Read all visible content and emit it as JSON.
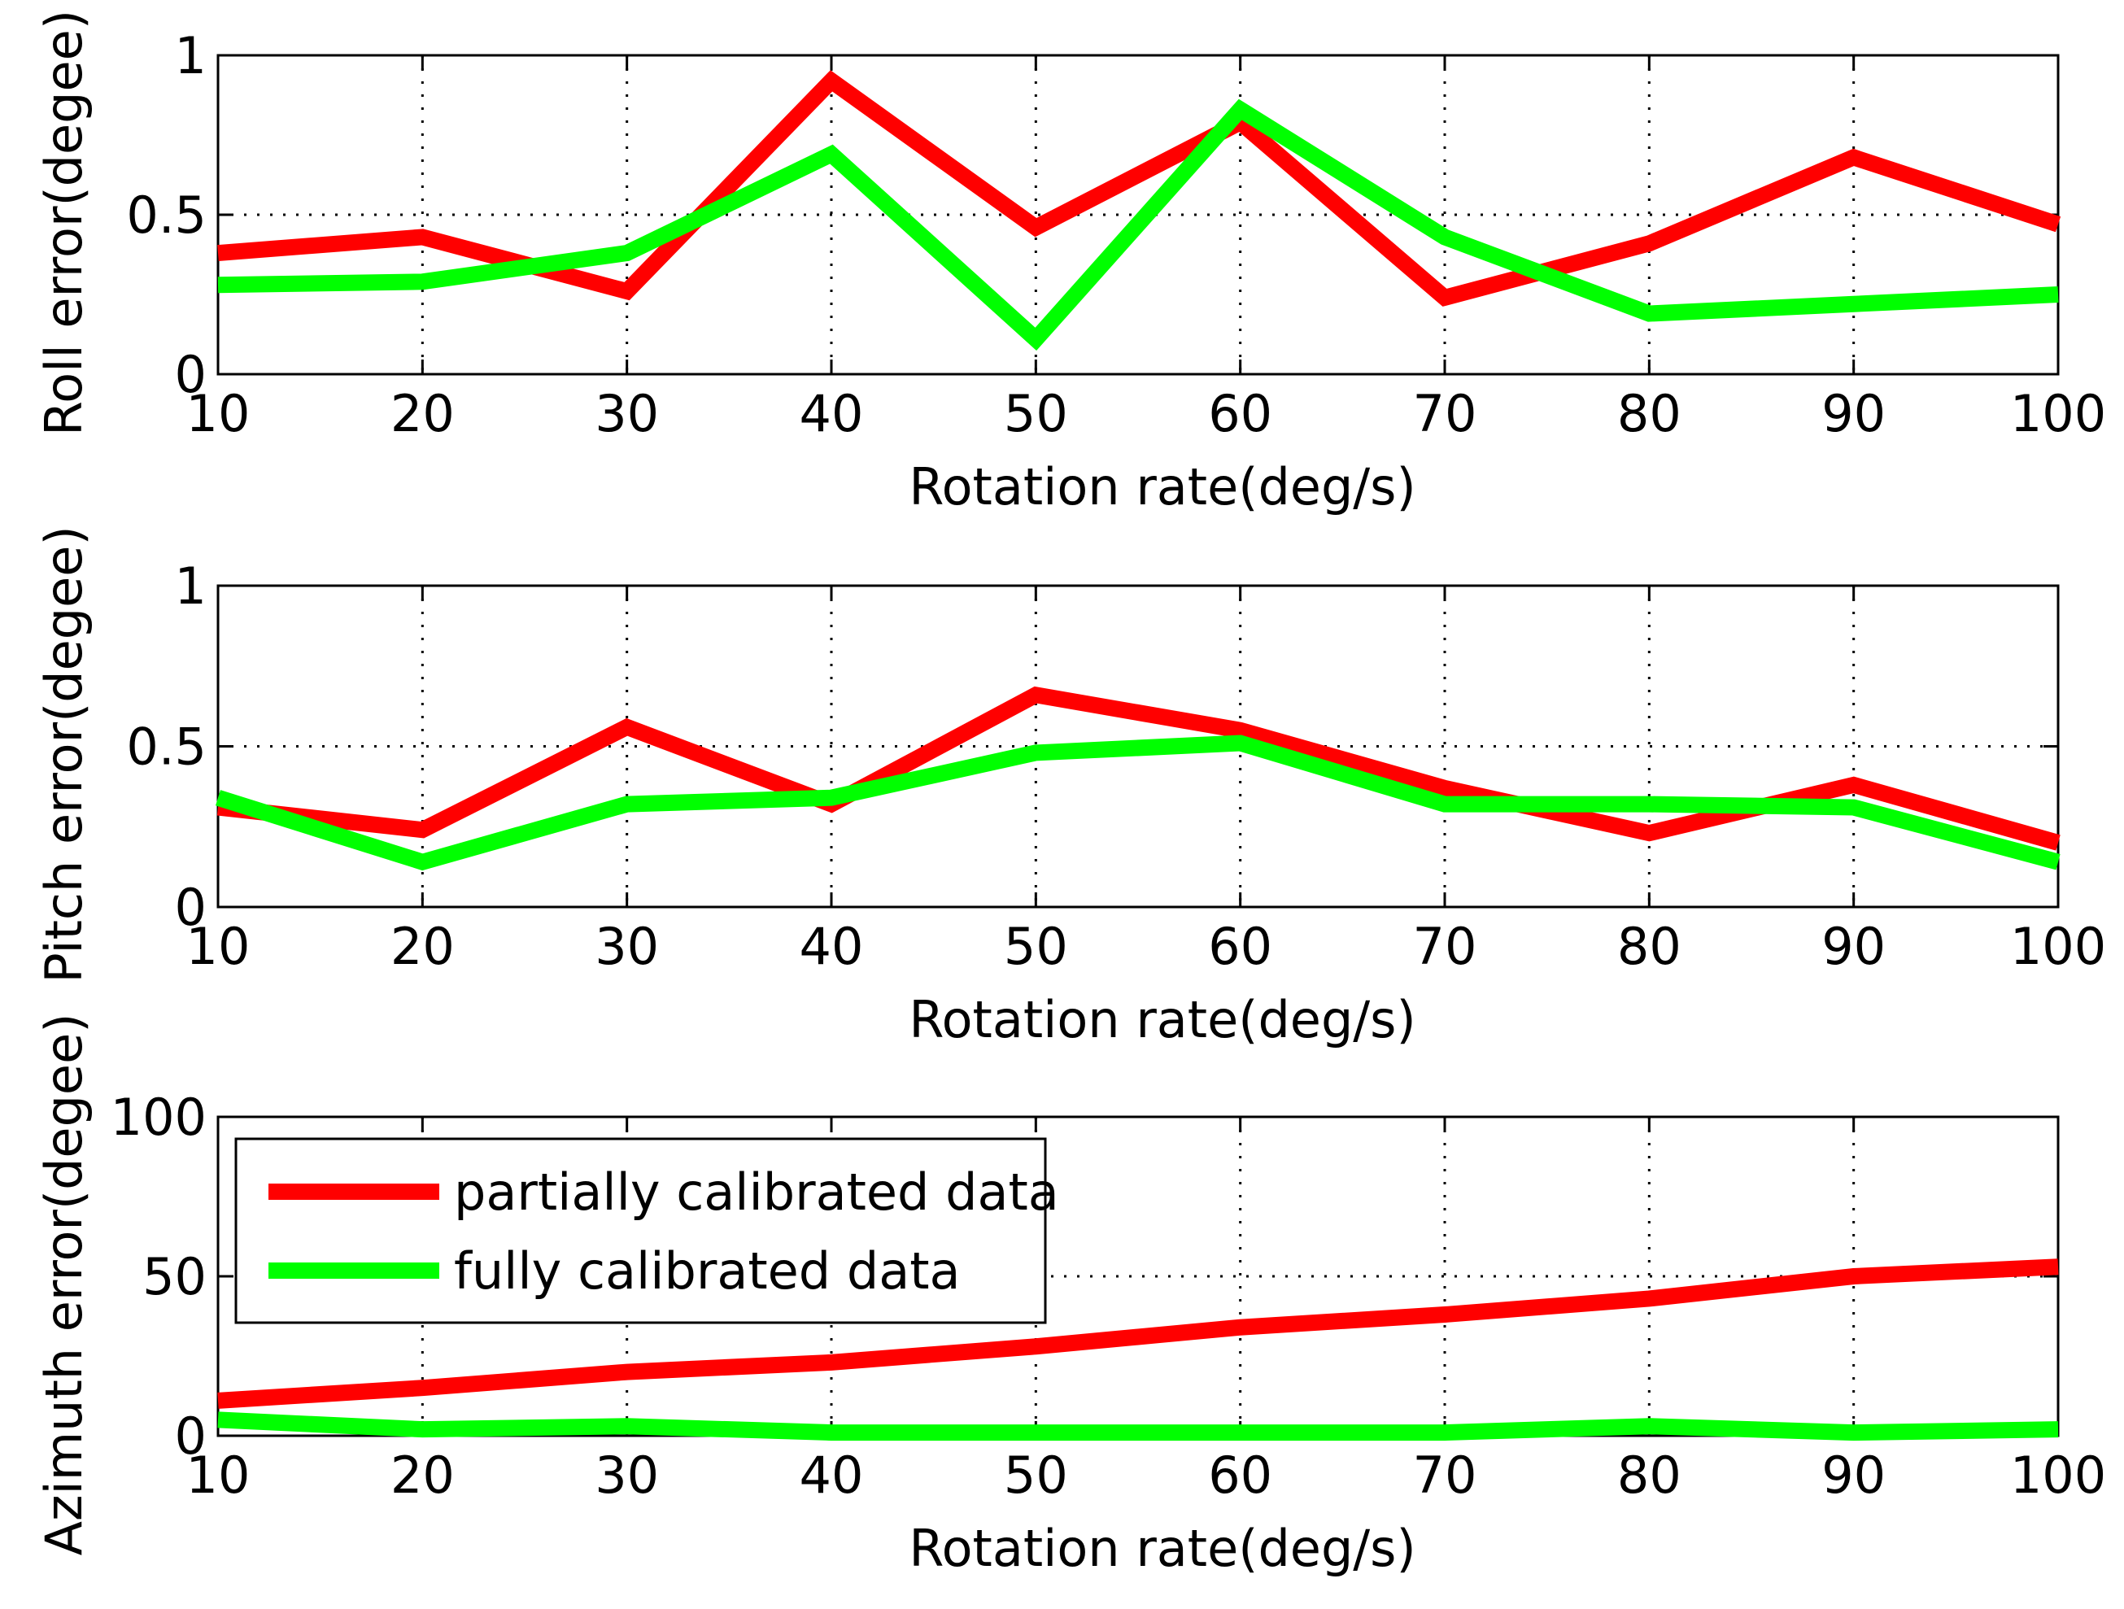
{
  "chart_data": [
    {
      "type": "line",
      "title": "",
      "xlabel": "Rotation rate(deg/s)",
      "ylabel": "Roll error(degee)",
      "x": [
        10,
        20,
        30,
        40,
        50,
        60,
        70,
        80,
        90,
        100
      ],
      "xlim": [
        10,
        100
      ],
      "ylim": [
        0,
        1
      ],
      "xticks": [
        "10",
        "20",
        "30",
        "40",
        "50",
        "60",
        "70",
        "80",
        "90",
        "100"
      ],
      "yticks": [
        "0",
        "0.5",
        "1"
      ],
      "ytick_values": [
        0,
        0.5,
        1
      ],
      "grid": true,
      "series": [
        {
          "name": "partially calibrated data",
          "color": "#ff0000",
          "values": [
            0.38,
            0.43,
            0.26,
            0.92,
            0.46,
            0.79,
            0.24,
            0.41,
            0.68,
            0.47
          ]
        },
        {
          "name": "fully calibrated data",
          "color": "#00ff00",
          "values": [
            0.28,
            0.29,
            0.38,
            0.69,
            0.11,
            0.83,
            0.43,
            0.19,
            0.22,
            0.25
          ]
        }
      ]
    },
    {
      "type": "line",
      "title": "",
      "xlabel": "Rotation rate(deg/s)",
      "ylabel": "Pitch error(degee)",
      "x": [
        10,
        20,
        30,
        40,
        50,
        60,
        70,
        80,
        90,
        100
      ],
      "xlim": [
        10,
        100
      ],
      "ylim": [
        0,
        1
      ],
      "xticks": [
        "10",
        "20",
        "30",
        "40",
        "50",
        "60",
        "70",
        "80",
        "90",
        "100"
      ],
      "yticks": [
        "0",
        "0.5",
        "1"
      ],
      "ytick_values": [
        0,
        0.5,
        1
      ],
      "grid": true,
      "series": [
        {
          "name": "partially calibrated data",
          "color": "#ff0000",
          "values": [
            0.31,
            0.24,
            0.56,
            0.32,
            0.66,
            0.55,
            0.37,
            0.23,
            0.38,
            0.2
          ]
        },
        {
          "name": "fully calibrated data",
          "color": "#00ff00",
          "values": [
            0.34,
            0.14,
            0.32,
            0.34,
            0.48,
            0.51,
            0.32,
            0.32,
            0.31,
            0.14
          ]
        }
      ]
    },
    {
      "type": "line",
      "title": "",
      "xlabel": "Rotation rate(deg/s)",
      "ylabel": "Azimuth error(degee)",
      "x": [
        10,
        20,
        30,
        40,
        50,
        60,
        70,
        80,
        90,
        100
      ],
      "xlim": [
        10,
        100
      ],
      "ylim": [
        0,
        100
      ],
      "xticks": [
        "10",
        "20",
        "30",
        "40",
        "50",
        "60",
        "70",
        "80",
        "90",
        "100"
      ],
      "yticks": [
        "0",
        "50",
        "100"
      ],
      "ytick_values": [
        0,
        50,
        100
      ],
      "grid": true,
      "legend": "top-left",
      "series": [
        {
          "name": "partially calibrated data",
          "color": "#ff0000",
          "values": [
            11,
            15,
            20,
            23,
            28,
            34,
            38,
            43,
            50,
            53
          ]
        },
        {
          "name": "fully calibrated data",
          "color": "#00ff00",
          "values": [
            5,
            2,
            3,
            1,
            1,
            1,
            1,
            3,
            1,
            2
          ]
        }
      ]
    }
  ]
}
